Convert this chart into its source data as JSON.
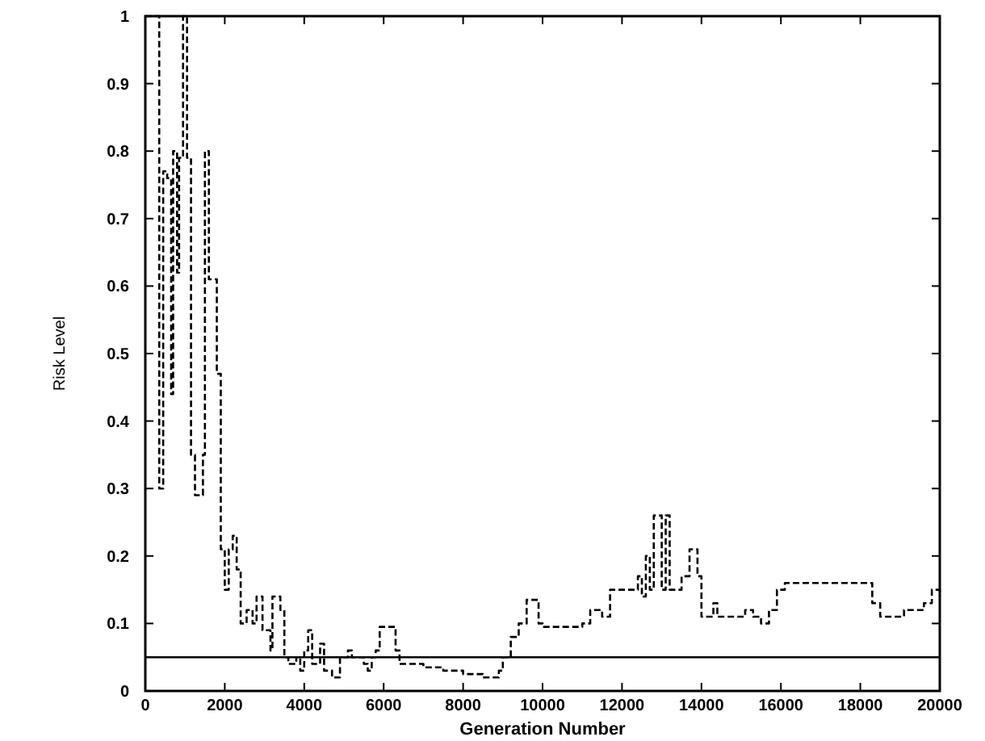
{
  "chart_data": {
    "type": "step",
    "xlabel": "Generation Number",
    "ylabel": "Risk Level",
    "xlim": [
      0,
      20000
    ],
    "ylim": [
      0,
      1
    ],
    "xticks": [
      0,
      2000,
      4000,
      6000,
      8000,
      10000,
      12000,
      14000,
      16000,
      18000,
      20000
    ],
    "yticks": [
      0,
      0.1,
      0.2,
      0.3,
      0.4,
      0.5,
      0.6,
      0.7,
      0.8,
      0.9,
      1
    ],
    "grid": false,
    "line_style": "dashed",
    "ref_lines": [
      {
        "axis": "y",
        "value": 0.05,
        "color": "#000000",
        "line_style": "solid"
      }
    ],
    "series": [
      {
        "color": "#000000",
        "x": [
          0,
          350,
          450,
          550,
          650,
          700,
          800,
          850,
          950,
          1050,
          1150,
          1250,
          1450,
          1500,
          1600,
          1800,
          1900,
          2000,
          2100,
          2200,
          2300,
          2400,
          2550,
          2700,
          2800,
          2950,
          3150,
          3200,
          3400,
          3500,
          3600,
          3800,
          3900,
          4000,
          4100,
          4200,
          4400,
          4500,
          4700,
          4900,
          5100,
          5200,
          5500,
          5600,
          5700,
          5800,
          5900,
          6300,
          6400,
          7000,
          7500,
          8000,
          8500,
          8900,
          9000,
          9200,
          9400,
          9600,
          9900,
          10000,
          11000,
          11200,
          11500,
          11700,
          12300,
          12400,
          12500,
          12600,
          12700,
          12800,
          13000,
          13100,
          13200,
          13500,
          13700,
          13900,
          14000,
          14200,
          14300,
          14400,
          15100,
          15300,
          15500,
          15700,
          15900,
          16100,
          18000,
          18300,
          18500,
          19100,
          19600,
          19800,
          20000
        ],
        "values": [
          1.0,
          0.3,
          0.77,
          0.76,
          0.44,
          0.8,
          0.62,
          0.79,
          1.0,
          0.79,
          0.35,
          0.29,
          0.35,
          0.8,
          0.61,
          0.47,
          0.21,
          0.15,
          0.21,
          0.23,
          0.18,
          0.1,
          0.12,
          0.1,
          0.14,
          0.09,
          0.06,
          0.14,
          0.12,
          0.05,
          0.04,
          0.05,
          0.03,
          0.06,
          0.09,
          0.04,
          0.07,
          0.03,
          0.02,
          0.05,
          0.06,
          0.05,
          0.04,
          0.03,
          0.05,
          0.06,
          0.095,
          0.06,
          0.04,
          0.035,
          0.03,
          0.025,
          0.02,
          0.03,
          0.05,
          0.08,
          0.1,
          0.135,
          0.1,
          0.095,
          0.1,
          0.12,
          0.11,
          0.15,
          0.15,
          0.17,
          0.14,
          0.2,
          0.15,
          0.26,
          0.15,
          0.26,
          0.15,
          0.17,
          0.21,
          0.17,
          0.11,
          0.11,
          0.13,
          0.11,
          0.12,
          0.11,
          0.1,
          0.12,
          0.15,
          0.16,
          0.16,
          0.13,
          0.11,
          0.12,
          0.13,
          0.15,
          0.14
        ]
      }
    ]
  }
}
